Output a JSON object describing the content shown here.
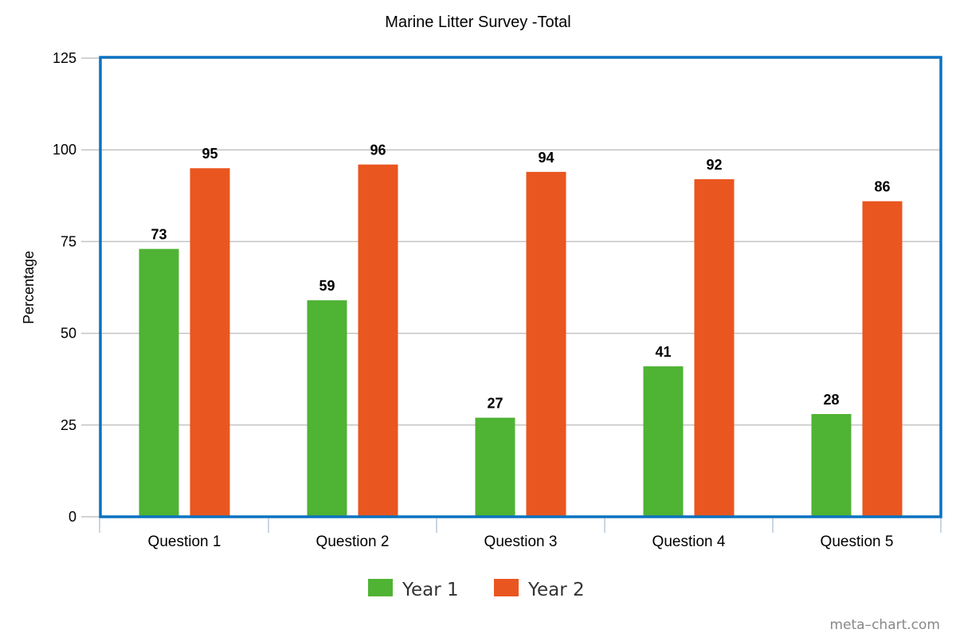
{
  "chart_data": {
    "type": "bar",
    "title": "Marine Litter Survey -Total",
    "xlabel": "",
    "ylabel": "Percentage",
    "ylim": [
      0,
      125
    ],
    "yticks": [
      0,
      25,
      50,
      75,
      100,
      125
    ],
    "categories": [
      "Question 1",
      "Question 2",
      "Question 3",
      "Question 4",
      "Question 5"
    ],
    "series": [
      {
        "name": "Year 1",
        "color": "#4fb334",
        "values": [
          73,
          59,
          27,
          41,
          28
        ]
      },
      {
        "name": "Year 2",
        "color": "#ea561f",
        "values": [
          95,
          96,
          94,
          92,
          86
        ]
      }
    ],
    "grid": true,
    "legend_position": "bottom-center",
    "frame_color": "#0b72c0"
  },
  "watermark": "meta–chart.com"
}
